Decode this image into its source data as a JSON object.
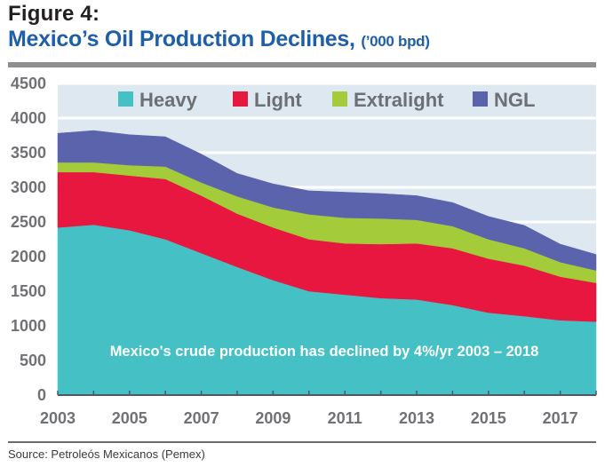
{
  "figure_label": "Figure 4:",
  "title": "Mexico’s Oil Production Declines,",
  "title_units": "(’000 bpd)",
  "source": "Source: Petroleós Mexicanos (Pemex)",
  "chart_data": {
    "type": "area",
    "stacked": true,
    "title": "Mexico’s Oil Production Declines",
    "units": "’000 bpd",
    "xlabel": "",
    "ylabel": "",
    "x": [
      2003,
      2004,
      2005,
      2006,
      2007,
      2008,
      2009,
      2010,
      2011,
      2012,
      2013,
      2014,
      2015,
      2016,
      2017,
      2018
    ],
    "x_tick_labels": [
      "2003",
      "2005",
      "2007",
      "2009",
      "2011",
      "2013",
      "2015",
      "2017"
    ],
    "ylim": [
      0,
      4500
    ],
    "y_ticks": [
      0,
      500,
      1000,
      1500,
      2000,
      2500,
      3000,
      3500,
      4000,
      4500
    ],
    "grid": "horizontal",
    "legend_position": "top",
    "series": [
      {
        "name": "Heavy",
        "color": "#45c1c5",
        "values": [
          2420,
          2460,
          2380,
          2250,
          2050,
          1850,
          1660,
          1500,
          1450,
          1400,
          1380,
          1300,
          1190,
          1140,
          1080,
          1060
        ]
      },
      {
        "name": "Light",
        "color": "#e8173f",
        "values": [
          800,
          760,
          790,
          870,
          830,
          770,
          760,
          750,
          740,
          780,
          810,
          820,
          780,
          730,
          630,
          560
        ]
      },
      {
        "name": "Extralight",
        "color": "#a3cb3a",
        "values": [
          140,
          140,
          150,
          180,
          190,
          250,
          290,
          360,
          370,
          370,
          340,
          320,
          280,
          250,
          210,
          180
        ]
      },
      {
        "name": "NGL",
        "color": "#5c63ad",
        "values": [
          420,
          460,
          440,
          430,
          410,
          330,
          340,
          340,
          370,
          360,
          350,
          340,
          330,
          330,
          260,
          230
        ]
      }
    ],
    "annotations": [
      "Mexico's crude production has declined by 4%/yr 2003 – 2018"
    ]
  },
  "colors": {
    "plot_background": "#dde8f1",
    "title_blue": "#1f5ea8",
    "axis_text": "#707175"
  }
}
